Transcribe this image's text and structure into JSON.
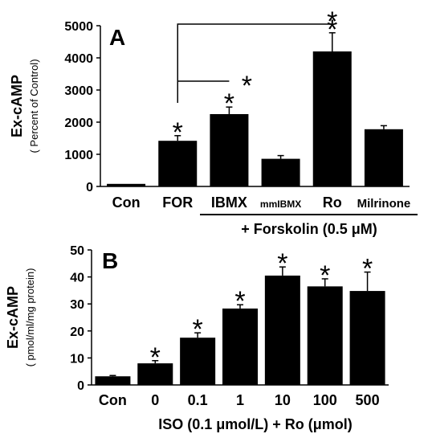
{
  "chart_data": [
    {
      "type": "bar",
      "panel_label": "A",
      "ylabel": "Ex-cAMP",
      "ylabel_sub": "( Percent of Control)",
      "ylim": [
        0,
        5000
      ],
      "yticks": [
        "0",
        "1000",
        "2000",
        "3000",
        "4000",
        "5000"
      ],
      "categories": [
        "Con",
        "FOR",
        "IBMX",
        "mmIBMX",
        "Ro",
        "Milrinone"
      ],
      "values": [
        80,
        1420,
        2250,
        860,
        4200,
        1780
      ],
      "errors": [
        0,
        160,
        220,
        100,
        580,
        110
      ],
      "significance": [
        "",
        "*",
        "*",
        "",
        "*",
        ""
      ],
      "significance_bracket": [
        "",
        "*",
        "*"
      ],
      "group_label": "+ Forskolin (0.5 μM)",
      "color": "#000000"
    },
    {
      "type": "bar",
      "panel_label": "B",
      "ylabel": "Ex-cAMP",
      "ylabel_sub": "( pmol/ml/mg protein)",
      "ylim": [
        0,
        50
      ],
      "yticks": [
        "0",
        "10",
        "20",
        "30",
        "40",
        "50"
      ],
      "categories": [
        "Con",
        "0",
        "0.1",
        "1",
        "10",
        "100",
        "500"
      ],
      "values": [
        3.2,
        8.0,
        17.5,
        28.3,
        40.5,
        36.5,
        34.8
      ],
      "errors": [
        0.3,
        1.0,
        1.8,
        1.4,
        3.2,
        2.8,
        7.0
      ],
      "significance": [
        "",
        "*",
        "*",
        "*",
        "*",
        "*",
        "*"
      ],
      "xlabel": "ISO (0.1 μmol/L) + Ro (μmol)",
      "color": "#000000"
    }
  ]
}
